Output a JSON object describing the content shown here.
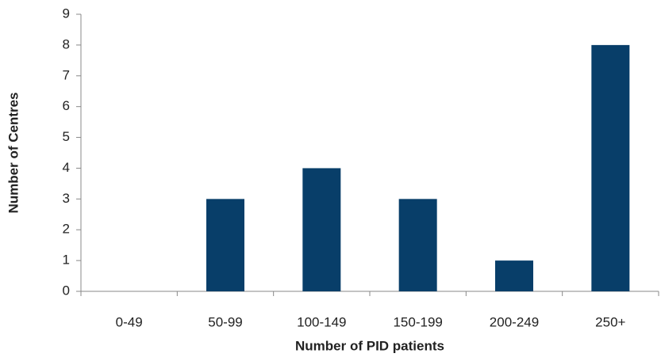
{
  "chart_data": {
    "type": "bar",
    "xlabel": "Number of PID patients",
    "ylabel": "Number of Centres",
    "categories": [
      "0-49",
      "50-99",
      "100-149",
      "150-199",
      "200-249",
      "250+"
    ],
    "values": [
      0,
      3,
      4,
      3,
      1,
      8
    ],
    "color": "#083e69",
    "ylim": [
      0,
      9
    ],
    "yticks": [
      0,
      1,
      2,
      3,
      4,
      5,
      6,
      7,
      8,
      9
    ],
    "grid": false
  }
}
